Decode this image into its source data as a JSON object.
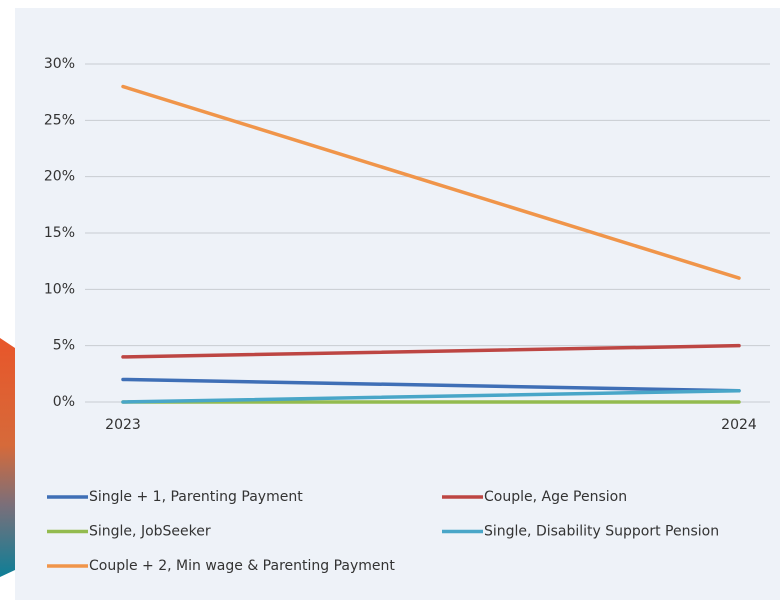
{
  "chart_data": {
    "type": "line",
    "categories": [
      "2023",
      "2024"
    ],
    "series": [
      {
        "name": "Single + 1,  Parenting Payment",
        "color": "#3f6fb6",
        "values": [
          2,
          1
        ]
      },
      {
        "name": "Couple, Age Pension",
        "color": "#bd4643",
        "values": [
          4,
          5
        ]
      },
      {
        "name": "Single, JobSeeker",
        "color": "#93bb4f",
        "values": [
          0,
          0
        ]
      },
      {
        "name": "Single, Disability Support Pension",
        "color": "#49a6c8",
        "values": [
          0,
          1
        ]
      },
      {
        "name": "Couple + 2, Min wage & Parenting Payment",
        "color": "#f0954a",
        "values": [
          28,
          11
        ]
      }
    ],
    "ylim": [
      0,
      30
    ],
    "yticks": [
      {
        "value": 0,
        "label": "0%"
      },
      {
        "value": 5,
        "label": "5%"
      },
      {
        "value": 10,
        "label": "10%"
      },
      {
        "value": 15,
        "label": "15%"
      },
      {
        "value": 20,
        "label": "20%"
      },
      {
        "value": 25,
        "label": "25%"
      },
      {
        "value": 30,
        "label": "30%"
      }
    ],
    "grid": true,
    "legend": "bottom"
  }
}
